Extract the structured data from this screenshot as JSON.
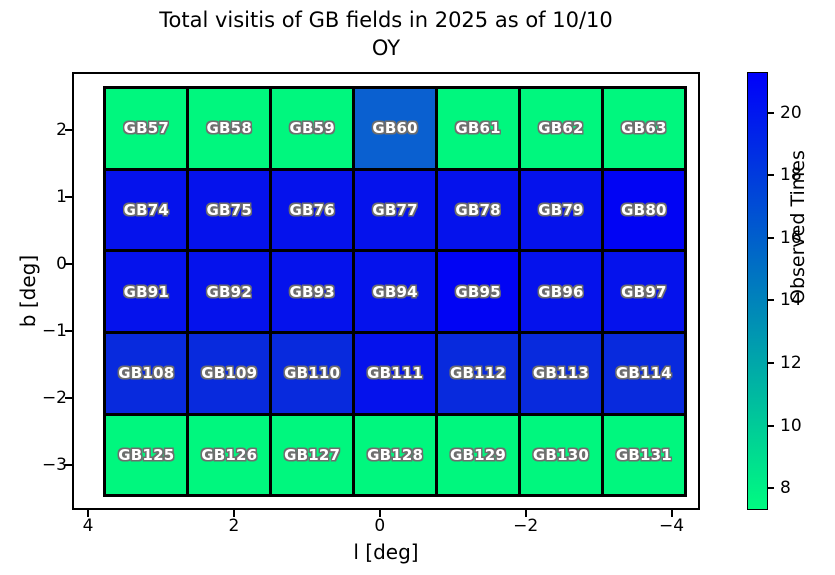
{
  "figure": {
    "title_line1": "Total visitis of GB fields in 2025 as of 10/10",
    "title_line2": "OY"
  },
  "chart_data": {
    "type": "heatmap",
    "title": "Total visitis of GB fields in 2025 as of 10/10 OY",
    "xlabel": "l [deg]",
    "ylabel": "b [deg]",
    "grid_on": false,
    "x_axis": {
      "lim": [
        4.22,
        -4.39
      ],
      "reversed": true,
      "ticks": [
        4,
        2,
        0,
        -2,
        -4
      ],
      "tick_labels": [
        "4",
        "2",
        "0",
        "−2",
        "−4"
      ]
    },
    "y_axis": {
      "lim": [
        2.87,
        -3.67
      ],
      "ticks": [
        2,
        1,
        0,
        -1,
        -2,
        -3
      ],
      "tick_labels": [
        "2",
        "1",
        "0",
        "−1",
        "−2",
        "−3"
      ]
    },
    "grid_extent": {
      "l_left": 3.79,
      "l_right": -4.21,
      "b_top": 2.66,
      "b_bottom": -3.48
    },
    "colorbar": {
      "label": "Observed Times",
      "lim": [
        7.3,
        21.3
      ],
      "ticks": [
        8,
        10,
        12,
        14,
        16,
        18,
        20
      ],
      "tick_labels": [
        "8",
        "10",
        "12",
        "14",
        "16",
        "18",
        "20"
      ],
      "bottom_color": "#00fb81",
      "top_color": "#0000fa",
      "colormap": "winter_r"
    },
    "cell_outline_color": "#000000",
    "rows": [
      {
        "cells": [
          {
            "label": "GB57",
            "value": 7.5,
            "color": "#00f77e"
          },
          {
            "label": "GB58",
            "value": 7.5,
            "color": "#00f77e"
          },
          {
            "label": "GB59",
            "value": 7.5,
            "color": "#00f77e"
          },
          {
            "label": "GB60",
            "value": 16,
            "color": "#0a60d0"
          },
          {
            "label": "GB61",
            "value": 7.5,
            "color": "#00f77e"
          },
          {
            "label": "GB62",
            "value": 7.5,
            "color": "#00f77e"
          },
          {
            "label": "GB63",
            "value": 7.5,
            "color": "#00f77e"
          }
        ]
      },
      {
        "cells": [
          {
            "label": "GB74",
            "value": 20.5,
            "color": "#0512ec"
          },
          {
            "label": "GB75",
            "value": 20.5,
            "color": "#0512ec"
          },
          {
            "label": "GB76",
            "value": 20.5,
            "color": "#0512ec"
          },
          {
            "label": "GB77",
            "value": 20.5,
            "color": "#0512ec"
          },
          {
            "label": "GB78",
            "value": 20.5,
            "color": "#0512ec"
          },
          {
            "label": "GB79",
            "value": 20.5,
            "color": "#0512ec"
          },
          {
            "label": "GB80",
            "value": 21.3,
            "color": "#0104f4"
          }
        ]
      },
      {
        "cells": [
          {
            "label": "GB91",
            "value": 20.5,
            "color": "#0512ec"
          },
          {
            "label": "GB92",
            "value": 20.5,
            "color": "#0512ec"
          },
          {
            "label": "GB93",
            "value": 20.5,
            "color": "#0512ec"
          },
          {
            "label": "GB94",
            "value": 20.5,
            "color": "#0512ec"
          },
          {
            "label": "GB95",
            "value": 21.3,
            "color": "#0104f4"
          },
          {
            "label": "GB96",
            "value": 20.5,
            "color": "#0512ec"
          },
          {
            "label": "GB97",
            "value": 20.5,
            "color": "#0512ec"
          }
        ]
      },
      {
        "cells": [
          {
            "label": "GB108",
            "value": 19.5,
            "color": "#082add"
          },
          {
            "label": "GB109",
            "value": 19.5,
            "color": "#082add"
          },
          {
            "label": "GB110",
            "value": 19.5,
            "color": "#082add"
          },
          {
            "label": "GB111",
            "value": 20.5,
            "color": "#0512ec"
          },
          {
            "label": "GB112",
            "value": 19.5,
            "color": "#082add"
          },
          {
            "label": "GB113",
            "value": 19.5,
            "color": "#082add"
          },
          {
            "label": "GB114",
            "value": 19.5,
            "color": "#082add"
          }
        ]
      },
      {
        "cells": [
          {
            "label": "GB125",
            "value": 7.5,
            "color": "#00f77e"
          },
          {
            "label": "GB126",
            "value": 7.5,
            "color": "#00f77e"
          },
          {
            "label": "GB127",
            "value": 7.5,
            "color": "#00f77e"
          },
          {
            "label": "GB128",
            "value": 7.5,
            "color": "#00f77e"
          },
          {
            "label": "GB129",
            "value": 7.5,
            "color": "#00f77e"
          },
          {
            "label": "GB130",
            "value": 7.5,
            "color": "#00f77e"
          },
          {
            "label": "GB131",
            "value": 7.5,
            "color": "#00f77e"
          }
        ]
      }
    ]
  }
}
